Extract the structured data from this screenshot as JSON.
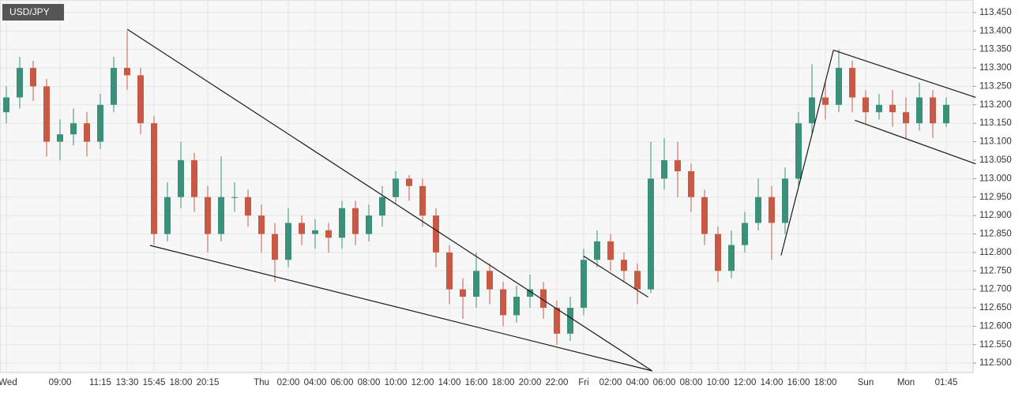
{
  "chart_data": {
    "type": "candlestick",
    "title": "USD/JPY",
    "categories": [
      "Wed",
      null,
      null,
      null,
      "09:00",
      null,
      null,
      "11:15",
      null,
      "13:30",
      null,
      "15:45",
      null,
      "18:00",
      null,
      "20:15",
      null,
      null,
      null,
      "Thu",
      null,
      "02:00",
      null,
      "04:00",
      null,
      "06:00",
      null,
      "08:00",
      null,
      "10:00",
      null,
      "12:00",
      null,
      "14:00",
      null,
      "16:00",
      null,
      "18:00",
      null,
      "20:00",
      null,
      "22:00",
      null,
      "Fri",
      null,
      "02:00",
      null,
      "04:00",
      null,
      "06:00",
      null,
      "08:00",
      null,
      "10:00",
      null,
      "12:00",
      null,
      "14:00",
      null,
      "16:00",
      null,
      "18:00",
      null,
      null,
      "Sun",
      null,
      null,
      "Mon",
      null,
      null,
      "01:45"
    ],
    "open": [
      113.18,
      113.22,
      113.3,
      113.25,
      113.1,
      113.12,
      113.15,
      113.1,
      113.2,
      113.3,
      113.28,
      113.15,
      112.85,
      112.95,
      113.05,
      112.95,
      112.85,
      112.95,
      112.95,
      112.9,
      112.85,
      112.78,
      112.88,
      112.85,
      112.86,
      112.84,
      112.92,
      112.85,
      112.9,
      112.95,
      113.0,
      112.98,
      112.9,
      112.8,
      112.7,
      112.68,
      112.75,
      112.7,
      112.63,
      112.68,
      112.7,
      112.65,
      112.58,
      112.65,
      112.78,
      112.83,
      112.78,
      112.75,
      112.7,
      113.0,
      113.05,
      113.02,
      112.95,
      112.85,
      112.75,
      112.82,
      112.88,
      112.95,
      112.88,
      113.0,
      113.15,
      113.22,
      113.2,
      113.3,
      113.22,
      113.18,
      113.2,
      113.18,
      113.15,
      113.22,
      113.15
    ],
    "high": [
      113.25,
      113.33,
      113.32,
      113.27,
      113.16,
      113.19,
      113.18,
      113.23,
      113.33,
      113.4,
      113.3,
      113.17,
      112.99,
      113.1,
      113.07,
      112.98,
      113.06,
      112.99,
      112.97,
      112.93,
      112.88,
      112.92,
      112.9,
      112.89,
      112.88,
      112.94,
      112.94,
      112.93,
      112.98,
      113.02,
      113.01,
      113.0,
      112.92,
      112.82,
      112.73,
      112.8,
      112.77,
      112.72,
      112.71,
      112.74,
      112.72,
      112.67,
      112.68,
      112.81,
      112.86,
      112.85,
      112.8,
      112.77,
      113.1,
      113.11,
      113.1,
      113.04,
      112.97,
      112.87,
      112.86,
      112.91,
      113.0,
      112.98,
      113.03,
      113.18,
      113.31,
      113.26,
      113.35,
      113.32,
      113.24,
      113.23,
      113.24,
      113.22,
      113.26,
      113.24,
      113.22
    ],
    "low": [
      113.15,
      113.19,
      113.21,
      113.06,
      113.05,
      113.09,
      113.06,
      113.08,
      113.18,
      113.24,
      113.12,
      112.82,
      112.83,
      112.92,
      112.91,
      112.8,
      112.83,
      112.91,
      112.87,
      112.8,
      112.72,
      112.76,
      112.82,
      112.81,
      112.8,
      112.81,
      112.82,
      112.83,
      112.87,
      112.93,
      112.94,
      112.87,
      112.76,
      112.66,
      112.62,
      112.65,
      112.66,
      112.6,
      112.61,
      112.65,
      112.62,
      112.55,
      112.56,
      112.63,
      112.76,
      112.75,
      112.72,
      112.66,
      112.69,
      112.97,
      112.95,
      112.91,
      112.82,
      112.72,
      112.73,
      112.8,
      112.86,
      112.78,
      112.85,
      112.98,
      113.12,
      113.16,
      113.18,
      113.18,
      113.15,
      113.16,
      113.14,
      113.11,
      113.13,
      113.11,
      113.14
    ],
    "close": [
      113.22,
      113.3,
      113.25,
      113.1,
      113.12,
      113.15,
      113.1,
      113.2,
      113.3,
      113.28,
      113.15,
      112.85,
      112.95,
      113.05,
      112.95,
      112.85,
      112.95,
      112.95,
      112.9,
      112.85,
      112.78,
      112.88,
      112.85,
      112.86,
      112.84,
      112.92,
      112.85,
      112.9,
      112.95,
      113.0,
      112.98,
      112.9,
      112.8,
      112.7,
      112.68,
      112.75,
      112.7,
      112.63,
      112.68,
      112.7,
      112.65,
      112.58,
      112.65,
      112.78,
      112.83,
      112.78,
      112.75,
      112.7,
      113.0,
      113.05,
      113.02,
      112.95,
      112.85,
      112.75,
      112.82,
      112.88,
      112.95,
      112.88,
      113.0,
      113.15,
      113.22,
      113.2,
      113.3,
      113.22,
      113.18,
      113.2,
      113.18,
      113.15,
      113.22,
      113.15,
      113.2
    ],
    "up_color": "#3a9078",
    "down_color": "#c85a45",
    "line_color": "#1a1a1a",
    "trendlines": [
      {
        "x": [
          9,
          48.1
        ],
        "y": [
          113.405,
          112.479
        ]
      },
      {
        "x": [
          10.7,
          48.1
        ],
        "y": [
          112.819,
          112.479
        ]
      },
      {
        "x": [
          43,
          47.8
        ],
        "y": [
          112.79,
          112.679
        ]
      },
      {
        "x": [
          57.7,
          61.6
        ],
        "y": [
          112.792,
          113.348
        ]
      },
      {
        "x": [
          61.6,
          72.2
        ],
        "y": [
          113.348,
          113.22
        ]
      },
      {
        "x": [
          63.2,
          72.2
        ],
        "y": [
          113.158,
          113.04
        ]
      }
    ],
    "ylim": [
      112.479,
      113.484
    ],
    "yticks": [
      {
        "value": 113.45,
        "label": "113.450"
      },
      {
        "value": 113.4,
        "label": "113.400"
      },
      {
        "value": 113.35,
        "label": "113.350"
      },
      {
        "value": 113.3,
        "label": "113.300"
      },
      {
        "value": 113.25,
        "label": "113.250"
      },
      {
        "value": 113.2,
        "label": "113.200"
      },
      {
        "value": 113.15,
        "label": "113.150"
      },
      {
        "value": 113.1,
        "label": "113.100"
      },
      {
        "value": 113.05,
        "label": "113.050"
      },
      {
        "value": 113,
        "label": "113.000"
      },
      {
        "value": 112.95,
        "label": "112.950"
      },
      {
        "value": 112.9,
        "label": "112.900"
      },
      {
        "value": 112.85,
        "label": "112.850"
      },
      {
        "value": 112.8,
        "label": "112.800"
      },
      {
        "value": 112.75,
        "label": "112.750"
      },
      {
        "value": 112.7,
        "label": "112.700"
      },
      {
        "value": 112.65,
        "label": "112.650"
      },
      {
        "value": 112.6,
        "label": "112.600"
      },
      {
        "value": 112.55,
        "label": "112.550"
      },
      {
        "value": 112.5,
        "label": "112.500"
      }
    ],
    "grid": true
  }
}
